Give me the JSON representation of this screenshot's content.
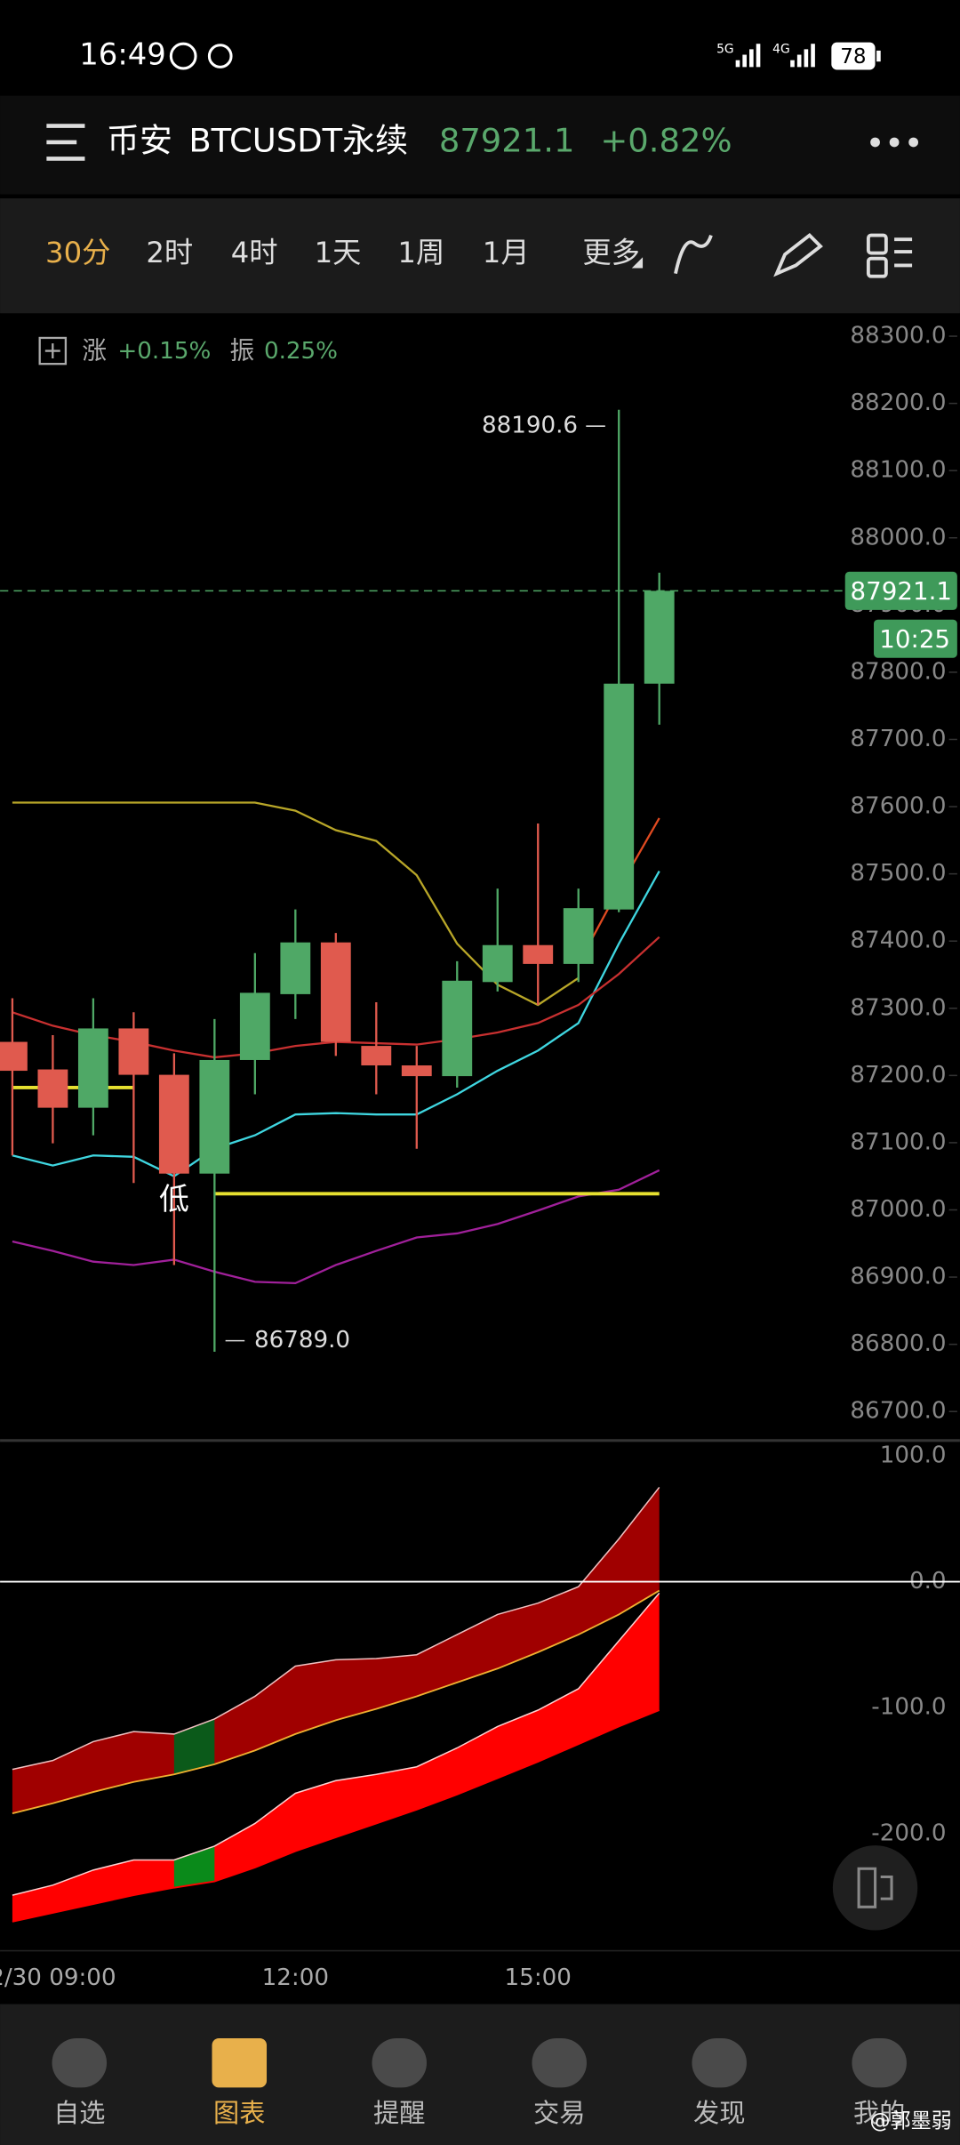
{
  "status_bar": {
    "time": "16:49",
    "battery": "78"
  },
  "header": {
    "exchange": "币安",
    "symbol": "BTCUSDT永续",
    "price": "87921.1",
    "change": "+0.82%"
  },
  "tabs": [
    "30分",
    "2时",
    "4时",
    "1天",
    "1周",
    "1月",
    "更多"
  ],
  "active_tab": 0,
  "chart_info": {
    "rise_label": "涨",
    "rise": "+0.15%",
    "amp_label": "振",
    "amp": "0.25%"
  },
  "chart_data": [
    {
      "type": "candlestick",
      "categories": [
        null,
        "2/30 09:00",
        null,
        null,
        null,
        null,
        null,
        "12:00",
        null,
        null,
        null,
        null,
        null,
        "15:00",
        null,
        null,
        null
      ],
      "open": [
        87250,
        87209,
        87152,
        87270,
        87201,
        87054,
        87223,
        87321,
        87398,
        87244,
        87215,
        87199,
        87339,
        87394,
        87366,
        87447,
        87783
      ],
      "high": [
        87315,
        87260,
        87315,
        87294,
        87233,
        87284,
        87382,
        87447,
        87412,
        87309,
        87244,
        87370,
        87478,
        87575,
        87478,
        88190.6,
        87948
      ],
      "low": [
        87081,
        87099,
        87111,
        87040,
        86918,
        86789,
        87172,
        87284,
        87229,
        87172,
        87091,
        87182,
        87325,
        87305,
        87339,
        87443,
        87722
      ],
      "close": [
        87207,
        87152,
        87270,
        87201,
        87054,
        87223,
        87323,
        87398,
        87250,
        87215,
        87199,
        87341,
        87394,
        87366,
        87449,
        87783,
        87921.1
      ],
      "up_color": "#4fa866",
      "down_color": "#e05a4e",
      "overlays": [
        {
          "color": "#b8a628",
          "values": [
            87606,
            87606,
            87606,
            87606,
            87606,
            87606,
            87606,
            87594,
            87565,
            87549,
            87498,
            87396,
            87335,
            87305,
            87345,
            null,
            null
          ]
        },
        {
          "color": "#3fd6e0",
          "values": [
            87081,
            87066,
            87081,
            87079,
            87050,
            87091,
            87111,
            87142,
            87144,
            87142,
            87142,
            87172,
            87207,
            87237,
            87278,
            87396,
            87504
          ]
        },
        {
          "color": "#a0209a",
          "values": [
            86953,
            86939,
            86923,
            86918,
            86926,
            86908,
            86893,
            86891,
            86918,
            86939,
            86959,
            86965,
            86979,
            86999,
            87020,
            87030,
            87059
          ]
        },
        {
          "color": "#c83030",
          "values": [
            87294,
            87274,
            87260,
            87250,
            87237,
            87227,
            87233,
            87244,
            87250,
            87248,
            87246,
            87254,
            87264,
            87278,
            87305,
            87351,
            87406
          ]
        },
        {
          "color": "#e04a20",
          "values": [
            null,
            null,
            null,
            null,
            null,
            null,
            null,
            null,
            null,
            null,
            null,
            null,
            null,
            null,
            87366,
            87478,
            87583
          ]
        }
      ],
      "hlines": [
        {
          "value": 87024,
          "from": 5,
          "to": 16,
          "color": "#e6e030"
        },
        {
          "value": 87182,
          "from": 0,
          "to": 3,
          "color": "#e6e030"
        }
      ],
      "ylim": [
        86663,
        88328
      ],
      "yticks": [
        {
          "value": 88300,
          "label": "88300.0"
        },
        {
          "value": 88200,
          "label": "88200.0"
        },
        {
          "value": 88100,
          "label": "88100.0"
        },
        {
          "value": 88000,
          "label": "88000.0"
        },
        {
          "value": 87900,
          "label": "87900.0"
        },
        {
          "value": 87800,
          "label": "87800.0"
        },
        {
          "value": 87700,
          "label": "87700.0"
        },
        {
          "value": 87600,
          "label": "87600.0"
        },
        {
          "value": 87500,
          "label": "87500.0"
        },
        {
          "value": 87400,
          "label": "87400.0"
        },
        {
          "value": 87300,
          "label": "87300.0"
        },
        {
          "value": 87200,
          "label": "87200.0"
        },
        {
          "value": 87100,
          "label": "87100.0"
        },
        {
          "value": 87000,
          "label": "87000.0"
        },
        {
          "value": 86900,
          "label": "86900.0"
        },
        {
          "value": 86800,
          "label": "86800.0"
        },
        {
          "value": 86700,
          "label": "86700.0"
        }
      ],
      "high_label": "88190.6",
      "low_label": "86789.0",
      "low_marker": "低",
      "last_price_label": "87921.1",
      "countdown": "10:25"
    },
    {
      "type": "area",
      "areas": [
        {
          "color": "#a00000",
          "edge_top": "#f0c0c0",
          "edge_bottom": "#f0b030",
          "upper": [
            -149,
            -142,
            -127,
            -119,
            -121,
            -109,
            -91,
            -67,
            -62,
            -61,
            -58,
            -42,
            -26,
            -17,
            -4,
            34,
            75
          ],
          "lower": [
            -184,
            -176,
            -167,
            -159,
            -153,
            -145,
            -134,
            -121,
            -110,
            -101,
            -91,
            -80,
            -69,
            -56,
            -42,
            -26,
            -7
          ]
        },
        {
          "color": "#ff0000",
          "edge_top": "#ffd0d0",
          "edge_bottom": "#ff0000",
          "upper": [
            -249,
            -241,
            -229,
            -221,
            -221,
            -210,
            -192,
            -168,
            -158,
            -153,
            -147,
            -132,
            -115,
            -102,
            -85,
            -47,
            -9
          ],
          "lower": [
            -270,
            -263,
            -256,
            -249,
            -243,
            -238,
            -227,
            -214,
            -203,
            -192,
            -181,
            -169,
            -156,
            -143,
            -129,
            -115,
            -102
          ]
        }
      ],
      "highlight_index": 4,
      "highlight_colors": [
        "#0b5a1a",
        "#0a8a1a"
      ],
      "ylim": [
        -292,
        110
      ],
      "yticks": [
        {
          "value": 100,
          "label": "100.0"
        },
        {
          "value": 0,
          "label": "0.0"
        },
        {
          "value": -100,
          "label": "-100.0"
        },
        {
          "value": -200,
          "label": "-200.0"
        }
      ],
      "zero_line": true
    }
  ],
  "nav": [
    "自选",
    "图表",
    "提醒",
    "交易",
    "发现",
    "我的"
  ],
  "active_nav": 1,
  "watermark": "@郭墨弱"
}
